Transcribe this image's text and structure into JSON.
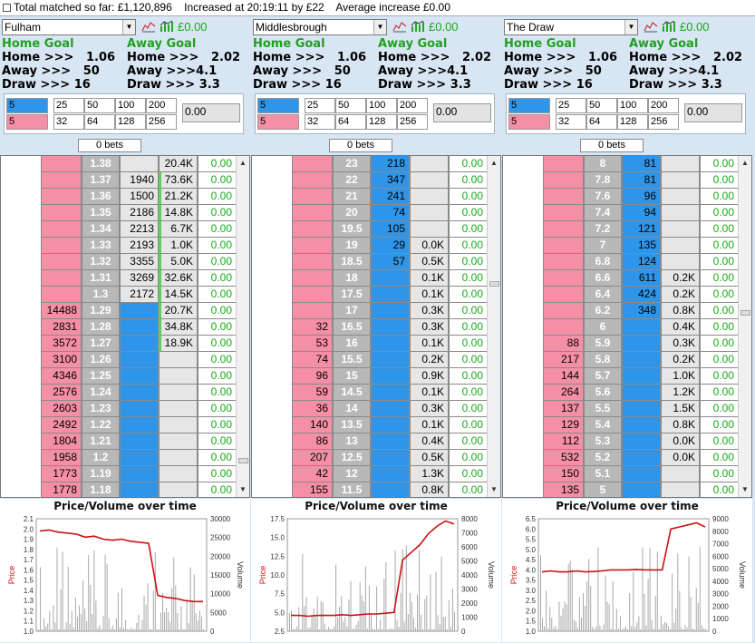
{
  "header": {
    "total_matched": "Total matched so far: £1,120,896",
    "increased_at": "Increased at 20:19:11 by £22",
    "average_increase": "Average increase £0.00"
  },
  "colors": {
    "back": "#2f95e8",
    "lay": "#f58fa6",
    "price": "#b8b8b8",
    "profit": "#18a818"
  },
  "icons": [
    "line-chart-icon",
    "bar-chart-icon"
  ],
  "stake_grid": [
    "25",
    "50",
    "100",
    "200",
    "32",
    "64",
    "128",
    "256"
  ],
  "panels": [
    {
      "selection": "Fulham",
      "pl": "£0.00",
      "home_goal": "Home Goal",
      "away_goal": "Away Goal",
      "home_line_1": "Home >>>   1.06",
      "away_line_1": "Away >>>   50",
      "draw_line_1": "Draw >>> 16",
      "home_line_2": "Home >>>   2.02",
      "away_line_2": "Away >>>4.1",
      "draw_line_2": "Draw >>> 3.3",
      "back_stake": "5",
      "lay_stake": "5",
      "value": "0.00",
      "bets": "0 bets",
      "rows": [
        [
          "",
          "1.38",
          "",
          "20.4K",
          "0.00"
        ],
        [
          "",
          "1.37",
          "1940",
          "73.6K",
          "0.00"
        ],
        [
          "",
          "1.36",
          "1500",
          "21.2K",
          "0.00"
        ],
        [
          "",
          "1.35",
          "2186",
          "14.8K",
          "0.00"
        ],
        [
          "",
          "1.34",
          "2213",
          "6.7K",
          "0.00"
        ],
        [
          "",
          "1.33",
          "2193",
          "1.0K",
          "0.00"
        ],
        [
          "",
          "1.32",
          "3355",
          "5.0K",
          "0.00"
        ],
        [
          "",
          "1.31",
          "3269",
          "32.6K",
          "0.00"
        ],
        [
          "",
          "1.3",
          "2172",
          "14.5K",
          "0.00"
        ],
        [
          "14488",
          "1.29",
          "",
          "20.7K",
          "0.00"
        ],
        [
          "2831",
          "1.28",
          "",
          "34.8K",
          "0.00"
        ],
        [
          "3572",
          "1.27",
          "",
          "18.9K",
          "0.00"
        ],
        [
          "3100",
          "1.26",
          "",
          "",
          "0.00"
        ],
        [
          "4346",
          "1.25",
          "",
          "",
          "0.00"
        ],
        [
          "2576",
          "1.24",
          "",
          "",
          "0.00"
        ],
        [
          "2603",
          "1.23",
          "",
          "",
          "0.00"
        ],
        [
          "2492",
          "1.22",
          "",
          "",
          "0.00"
        ],
        [
          "1804",
          "1.21",
          "",
          "",
          "0.00"
        ],
        [
          "1958",
          "1.2",
          "",
          "",
          "0.00"
        ],
        [
          "1773",
          "1.19",
          "",
          "",
          "0.00"
        ],
        [
          "1778",
          "1.18",
          "",
          "",
          "0.00"
        ]
      ],
      "chart_title": "Price/Volume over time",
      "y_left_label": "Price",
      "y_right_label": "Volume",
      "y_left_ticks": [
        "2.1",
        "2.0",
        "1.9",
        "1.8",
        "1.7",
        "1.6",
        "1.5",
        "1.4",
        "1.3",
        "1.2",
        "1.1",
        "1.0"
      ],
      "y_right_ticks": [
        "30000",
        "25000",
        "20000",
        "15000",
        "10000",
        "5000",
        "0"
      ]
    },
    {
      "selection": "Middlesbrough",
      "pl": "£0.00",
      "home_goal": "Home Goal",
      "away_goal": "Away Goal",
      "home_line_1": "Home >>>   1.06",
      "away_line_1": "Away >>>   50",
      "draw_line_1": "Draw >>> 16",
      "home_line_2": "Home >>>   2.02",
      "away_line_2": "Away >>>4.1",
      "draw_line_2": "Draw >>> 3.3",
      "back_stake": "5",
      "lay_stake": "5",
      "value": "0.00",
      "bets": "0 bets",
      "rows": [
        [
          "",
          "23",
          "218",
          "",
          "0.00"
        ],
        [
          "",
          "22",
          "347",
          "",
          "0.00"
        ],
        [
          "",
          "21",
          "241",
          "",
          "0.00"
        ],
        [
          "",
          "20",
          "74",
          "",
          "0.00"
        ],
        [
          "",
          "19.5",
          "105",
          "",
          "0.00"
        ],
        [
          "",
          "19",
          "29",
          "0.0K",
          "0.00"
        ],
        [
          "",
          "18.5",
          "57",
          "0.5K",
          "0.00"
        ],
        [
          "",
          "18",
          "",
          "0.1K",
          "0.00"
        ],
        [
          "",
          "17.5",
          "",
          "0.1K",
          "0.00"
        ],
        [
          "",
          "17",
          "",
          "0.3K",
          "0.00"
        ],
        [
          "32",
          "16.5",
          "",
          "0.3K",
          "0.00"
        ],
        [
          "53",
          "16",
          "",
          "0.1K",
          "0.00"
        ],
        [
          "74",
          "15.5",
          "",
          "0.2K",
          "0.00"
        ],
        [
          "96",
          "15",
          "",
          "0.9K",
          "0.00"
        ],
        [
          "59",
          "14.5",
          "",
          "0.1K",
          "0.00"
        ],
        [
          "36",
          "14",
          "",
          "0.3K",
          "0.00"
        ],
        [
          "140",
          "13.5",
          "",
          "0.1K",
          "0.00"
        ],
        [
          "86",
          "13",
          "",
          "0.4K",
          "0.00"
        ],
        [
          "207",
          "12.5",
          "",
          "0.5K",
          "0.00"
        ],
        [
          "42",
          "12",
          "",
          "1.3K",
          "0.00"
        ],
        [
          "155",
          "11.5",
          "",
          "0.8K",
          "0.00"
        ]
      ],
      "chart_title": "Price/Volume over time",
      "y_left_label": "Price",
      "y_right_label": "Volume",
      "y_left_ticks": [
        "17.5",
        "15.0",
        "12.5",
        "10.0",
        "7.5",
        "5.0",
        "2.5"
      ],
      "y_right_ticks": [
        "8000",
        "7000",
        "6000",
        "5000",
        "4000",
        "3000",
        "2000",
        "1000",
        "0"
      ]
    },
    {
      "selection": "The Draw",
      "pl": "£0.00",
      "home_goal": "Home Goal",
      "away_goal": "Away Goal",
      "home_line_1": "Home >>>   1.06",
      "away_line_1": "Away >>>   50",
      "draw_line_1": "Draw >>> 16",
      "home_line_2": "Home >>>   2.02",
      "away_line_2": "Away >>>4.1",
      "draw_line_2": "Draw >>> 3.3",
      "back_stake": "5",
      "lay_stake": "5",
      "value": "0.00",
      "bets": "0 bets",
      "rows": [
        [
          "",
          "8",
          "81",
          "",
          "0.00"
        ],
        [
          "",
          "7.8",
          "81",
          "",
          "0.00"
        ],
        [
          "",
          "7.6",
          "96",
          "",
          "0.00"
        ],
        [
          "",
          "7.4",
          "94",
          "",
          "0.00"
        ],
        [
          "",
          "7.2",
          "121",
          "",
          "0.00"
        ],
        [
          "",
          "7",
          "135",
          "",
          "0.00"
        ],
        [
          "",
          "6.8",
          "124",
          "",
          "0.00"
        ],
        [
          "",
          "6.6",
          "611",
          "0.2K",
          "0.00"
        ],
        [
          "",
          "6.4",
          "424",
          "0.2K",
          "0.00"
        ],
        [
          "",
          "6.2",
          "348",
          "0.8K",
          "0.00"
        ],
        [
          "",
          "6",
          "",
          "0.4K",
          "0.00"
        ],
        [
          "88",
          "5.9",
          "",
          "0.3K",
          "0.00"
        ],
        [
          "217",
          "5.8",
          "",
          "0.2K",
          "0.00"
        ],
        [
          "144",
          "5.7",
          "",
          "1.0K",
          "0.00"
        ],
        [
          "264",
          "5.6",
          "",
          "1.2K",
          "0.00"
        ],
        [
          "137",
          "5.5",
          "",
          "1.5K",
          "0.00"
        ],
        [
          "129",
          "5.4",
          "",
          "0.8K",
          "0.00"
        ],
        [
          "112",
          "5.3",
          "",
          "0.0K",
          "0.00"
        ],
        [
          "532",
          "5.2",
          "",
          "0.0K",
          "0.00"
        ],
        [
          "150",
          "5.1",
          "",
          "",
          "0.00"
        ],
        [
          "135",
          "5",
          "",
          "",
          "0.00"
        ]
      ],
      "chart_title": "Price/Volume over time",
      "y_left_label": "Price",
      "y_right_label": "Volume",
      "y_left_ticks": [
        "6.5",
        "6.0",
        "5.5",
        "5.0",
        "4.5",
        "4.0",
        "3.5",
        "3.0",
        "2.5",
        "2.0",
        "1.5",
        "1.0"
      ],
      "y_right_ticks": [
        "9000",
        "8000",
        "7000",
        "6000",
        "5000",
        "4000",
        "3000",
        "2000",
        "1000",
        "0"
      ]
    }
  ]
}
